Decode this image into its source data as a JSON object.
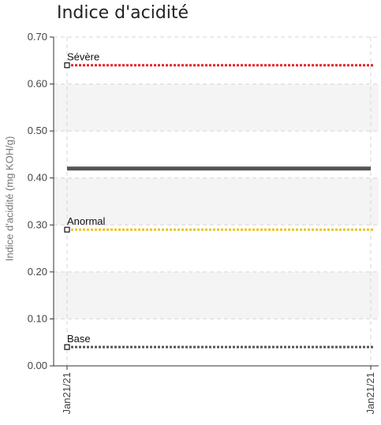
{
  "chart_data": {
    "type": "line",
    "title": "Indice d'acidité",
    "xlabel": "",
    "ylabel": "Indice d'acidité (mg KOH/g)",
    "ylim": [
      0,
      0.7
    ],
    "yticks": [
      "0.00",
      "0.10",
      "0.20",
      "0.30",
      "0.40",
      "0.50",
      "0.60",
      "0.70"
    ],
    "ytick_values": [
      0,
      0.1,
      0.2,
      0.3,
      0.4,
      0.5,
      0.6,
      0.7
    ],
    "xticks": [
      "Jan21/21",
      "Jan21/21"
    ],
    "grid": true,
    "alternating_bands": true,
    "series": [
      {
        "values": [
          0.42,
          0.42
        ],
        "color": "#555555"
      }
    ],
    "thresholds": [
      {
        "name": "Sévère",
        "value": 0.64,
        "color": "#e8202a"
      },
      {
        "name": "Anormal",
        "value": 0.29,
        "color": "#f0c21a"
      },
      {
        "name": "Base",
        "value": 0.04,
        "color": "#555555"
      }
    ]
  }
}
